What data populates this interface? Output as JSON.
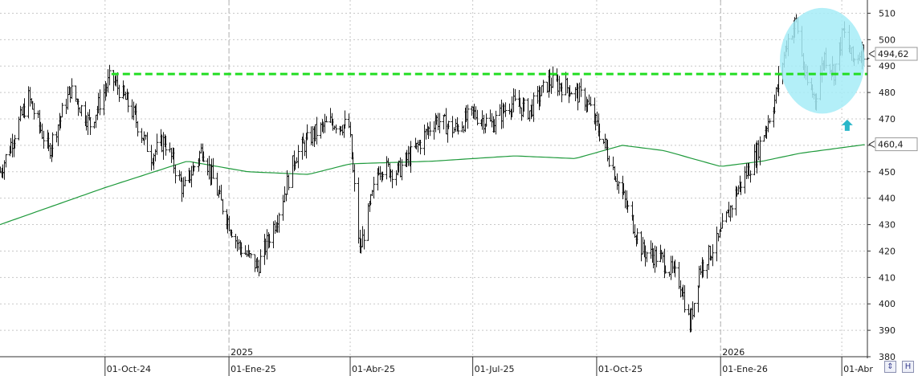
{
  "chart_data": {
    "type": "ohlc",
    "ylim": [
      380,
      515
    ],
    "y_ticks": [
      "510",
      "500",
      "490",
      "480",
      "470",
      "460",
      "450",
      "440",
      "430",
      "420",
      "410",
      "400",
      "390",
      "380"
    ],
    "x_ticks": [
      {
        "label": "01-Oct-24",
        "date": "2024-10-01"
      },
      {
        "label": "01-Ene-25",
        "date": "2025-01-01"
      },
      {
        "label": "01-Abr-25",
        "date": "2025-04-01"
      },
      {
        "label": "01-Jul-25",
        "date": "2025-07-01"
      },
      {
        "label": "01-Oct-25",
        "date": "2025-10-01"
      },
      {
        "label": "01-Ene-26",
        "date": "2026-01-01"
      },
      {
        "label": "01-Abr",
        "date": "2026-04-01"
      }
    ],
    "year_labels": [
      {
        "label": "2025",
        "date": "2025-01-01"
      },
      {
        "label": "2026",
        "date": "2026-01-01"
      }
    ],
    "x_range": [
      "2024-07-15",
      "2026-04-20"
    ],
    "price_path": [
      [
        "2024-07-15",
        450
      ],
      [
        "2024-08-05",
        478
      ],
      [
        "2024-08-20",
        458
      ],
      [
        "2024-09-05",
        481
      ],
      [
        "2024-09-20",
        468
      ],
      [
        "2024-10-05",
        486
      ],
      [
        "2024-10-20",
        474
      ],
      [
        "2024-11-04",
        456
      ],
      [
        "2024-11-14",
        462
      ],
      [
        "2024-11-28",
        443
      ],
      [
        "2024-12-12",
        459
      ],
      [
        "2024-12-26",
        438
      ],
      [
        "2025-01-08",
        422
      ],
      [
        "2025-01-22",
        414
      ],
      [
        "2025-02-05",
        432
      ],
      [
        "2025-02-19",
        456
      ],
      [
        "2025-03-04",
        464
      ],
      [
        "2025-03-18",
        469
      ],
      [
        "2025-03-31",
        467
      ],
      [
        "2025-04-08",
        420
      ],
      [
        "2025-04-22",
        452
      ],
      [
        "2025-05-06",
        450
      ],
      [
        "2025-05-20",
        459
      ],
      [
        "2025-06-03",
        470
      ],
      [
        "2025-06-17",
        466
      ],
      [
        "2025-07-01",
        472
      ],
      [
        "2025-07-15",
        468
      ],
      [
        "2025-07-29",
        476
      ],
      [
        "2025-08-12",
        473
      ],
      [
        "2025-08-26",
        484
      ],
      [
        "2025-09-09",
        482
      ],
      [
        "2025-09-23",
        477
      ],
      [
        "2025-10-07",
        460
      ],
      [
        "2025-10-21",
        440
      ],
      [
        "2025-11-04",
        420
      ],
      [
        "2025-11-18",
        417
      ],
      [
        "2025-12-02",
        408
      ],
      [
        "2025-12-09",
        392
      ],
      [
        "2025-12-16",
        413
      ],
      [
        "2025-12-30",
        424
      ],
      [
        "2026-01-13",
        443
      ],
      [
        "2026-01-27",
        456
      ],
      [
        "2026-02-10",
        477
      ],
      [
        "2026-02-19",
        499
      ],
      [
        "2026-02-26",
        507
      ],
      [
        "2026-03-05",
        484
      ],
      [
        "2026-03-12",
        478
      ],
      [
        "2026-03-19",
        494
      ],
      [
        "2026-03-26",
        488
      ],
      [
        "2026-04-02",
        503
      ],
      [
        "2026-04-09",
        492
      ],
      [
        "2026-04-16",
        496
      ],
      [
        "2026-04-20",
        494.62
      ]
    ],
    "ma_path": [
      [
        "2024-07-15",
        430
      ],
      [
        "2024-10-01",
        444
      ],
      [
        "2024-12-01",
        454
      ],
      [
        "2025-01-15",
        450
      ],
      [
        "2025-03-01",
        449
      ],
      [
        "2025-04-01",
        453
      ],
      [
        "2025-06-01",
        454
      ],
      [
        "2025-08-01",
        456
      ],
      [
        "2025-09-15",
        455
      ],
      [
        "2025-10-20",
        460
      ],
      [
        "2025-11-20",
        458
      ],
      [
        "2026-01-01",
        452
      ],
      [
        "2026-02-01",
        454
      ],
      [
        "2026-03-01",
        457
      ],
      [
        "2026-04-20",
        460.4
      ]
    ],
    "series": [
      {
        "name": "",
        "kind": "price_bars",
        "color": "#1a1a1a",
        "last_value": "494,62"
      },
      {
        "name": "",
        "kind": "moving_average",
        "color": "#1f9a3c",
        "last_value": "460,4"
      }
    ],
    "resistance_level": 487,
    "resistance_start": "2024-10-01",
    "resistance_color": "#22dd22",
    "highlight_ellipse": {
      "date_range": [
        "2026-02-14",
        "2026-04-18"
      ],
      "value_range": [
        472,
        512
      ],
      "color": "#a6ecf7"
    },
    "arrow_annotation": {
      "date": "2026-04-05",
      "value": 467,
      "direction": "up",
      "color": "#2ab7c9"
    },
    "grid": true,
    "grid_color": "#c8c8c8"
  },
  "controls": {
    "expand_label": "⇕",
    "save_label": "H"
  }
}
